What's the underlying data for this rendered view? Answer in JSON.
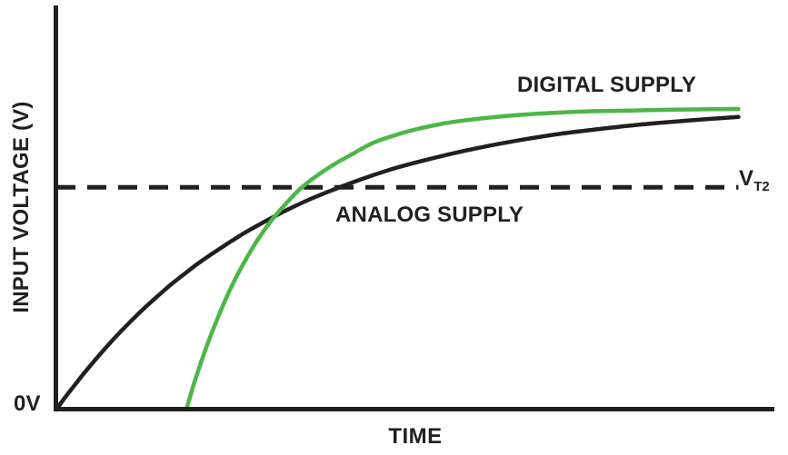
{
  "figure": {
    "background": "#ffffff",
    "labels": {
      "y_axis_title": "INPUT VOLTAGE (V)",
      "x_axis_title": "TIME",
      "origin": "0V",
      "digital_series": "DIGITAL SUPPLY",
      "analog_series": "ANALOG SUPPLY",
      "threshold_symbol": "V",
      "threshold_subscript": "T2"
    },
    "colors": {
      "ink": "#231f20",
      "digital_green": "#4cb748"
    }
  },
  "chart_data": {
    "type": "line",
    "title": "",
    "xlabel": "TIME",
    "ylabel": "INPUT VOLTAGE (V)",
    "xlim": [
      0,
      100
    ],
    "ylim": [
      0,
      100
    ],
    "grid": false,
    "x_ticks": [],
    "y_ticks": [
      {
        "value": 0,
        "label": "0V"
      }
    ],
    "legend_position": "inline-annotations",
    "annotations": [
      {
        "text": "DIGITAL SUPPLY",
        "x": 64,
        "y": 83
      },
      {
        "text": "ANALOG SUPPLY",
        "x": 39,
        "y": 48
      },
      {
        "text": "VT2",
        "x": 95,
        "y": 55
      }
    ],
    "threshold": {
      "label": "VT2",
      "value": 55,
      "style": "dashed",
      "color": "#231f20",
      "x_start": 0,
      "x_end": 95
    },
    "series": [
      {
        "name": "ANALOG SUPPLY",
        "color": "#231f20",
        "points": [
          [
            0,
            0
          ],
          [
            1,
            2.5
          ],
          [
            2,
            4.8
          ],
          [
            4,
            9.3
          ],
          [
            6,
            13.5
          ],
          [
            8,
            17.5
          ],
          [
            10,
            21.2
          ],
          [
            12,
            24.7
          ],
          [
            14,
            27.9
          ],
          [
            16,
            31.0
          ],
          [
            18,
            33.8
          ],
          [
            20,
            36.5
          ],
          [
            23,
            40.1
          ],
          [
            26,
            43.5
          ],
          [
            29,
            46.5
          ],
          [
            32,
            49.3
          ],
          [
            35,
            51.8
          ],
          [
            38,
            54.0
          ],
          [
            42,
            56.7
          ],
          [
            46,
            59.1
          ],
          [
            50,
            61.1
          ],
          [
            55,
            63.3
          ],
          [
            60,
            65.2
          ],
          [
            65,
            66.8
          ],
          [
            70,
            68.2
          ],
          [
            75,
            69.3
          ],
          [
            80,
            70.3
          ],
          [
            85,
            71.1
          ],
          [
            90,
            71.8
          ],
          [
            95,
            72.4
          ]
        ]
      },
      {
        "name": "DIGITAL SUPPLY",
        "color": "#4cb748",
        "points": [
          [
            18.1,
            0
          ],
          [
            18.6,
            3.0
          ],
          [
            19.2,
            6.6
          ],
          [
            20,
            10.9
          ],
          [
            21,
            16.0
          ],
          [
            22.2,
            21.5
          ],
          [
            23.5,
            27.0
          ],
          [
            25,
            32.6
          ],
          [
            26.5,
            37.5
          ],
          [
            28,
            41.9
          ],
          [
            30,
            46.9
          ],
          [
            32,
            51.0
          ],
          [
            34,
            54.7
          ],
          [
            36,
            57.5
          ],
          [
            38.5,
            60.5
          ],
          [
            41,
            63.0
          ],
          [
            44,
            65.9
          ],
          [
            47,
            67.8
          ],
          [
            50,
            69.3
          ],
          [
            54,
            70.8
          ],
          [
            58,
            71.8
          ],
          [
            63,
            72.7
          ],
          [
            68,
            73.3
          ],
          [
            74,
            73.8
          ],
          [
            80,
            74.0
          ],
          [
            86,
            74.2
          ],
          [
            95,
            74.4
          ]
        ]
      }
    ]
  }
}
